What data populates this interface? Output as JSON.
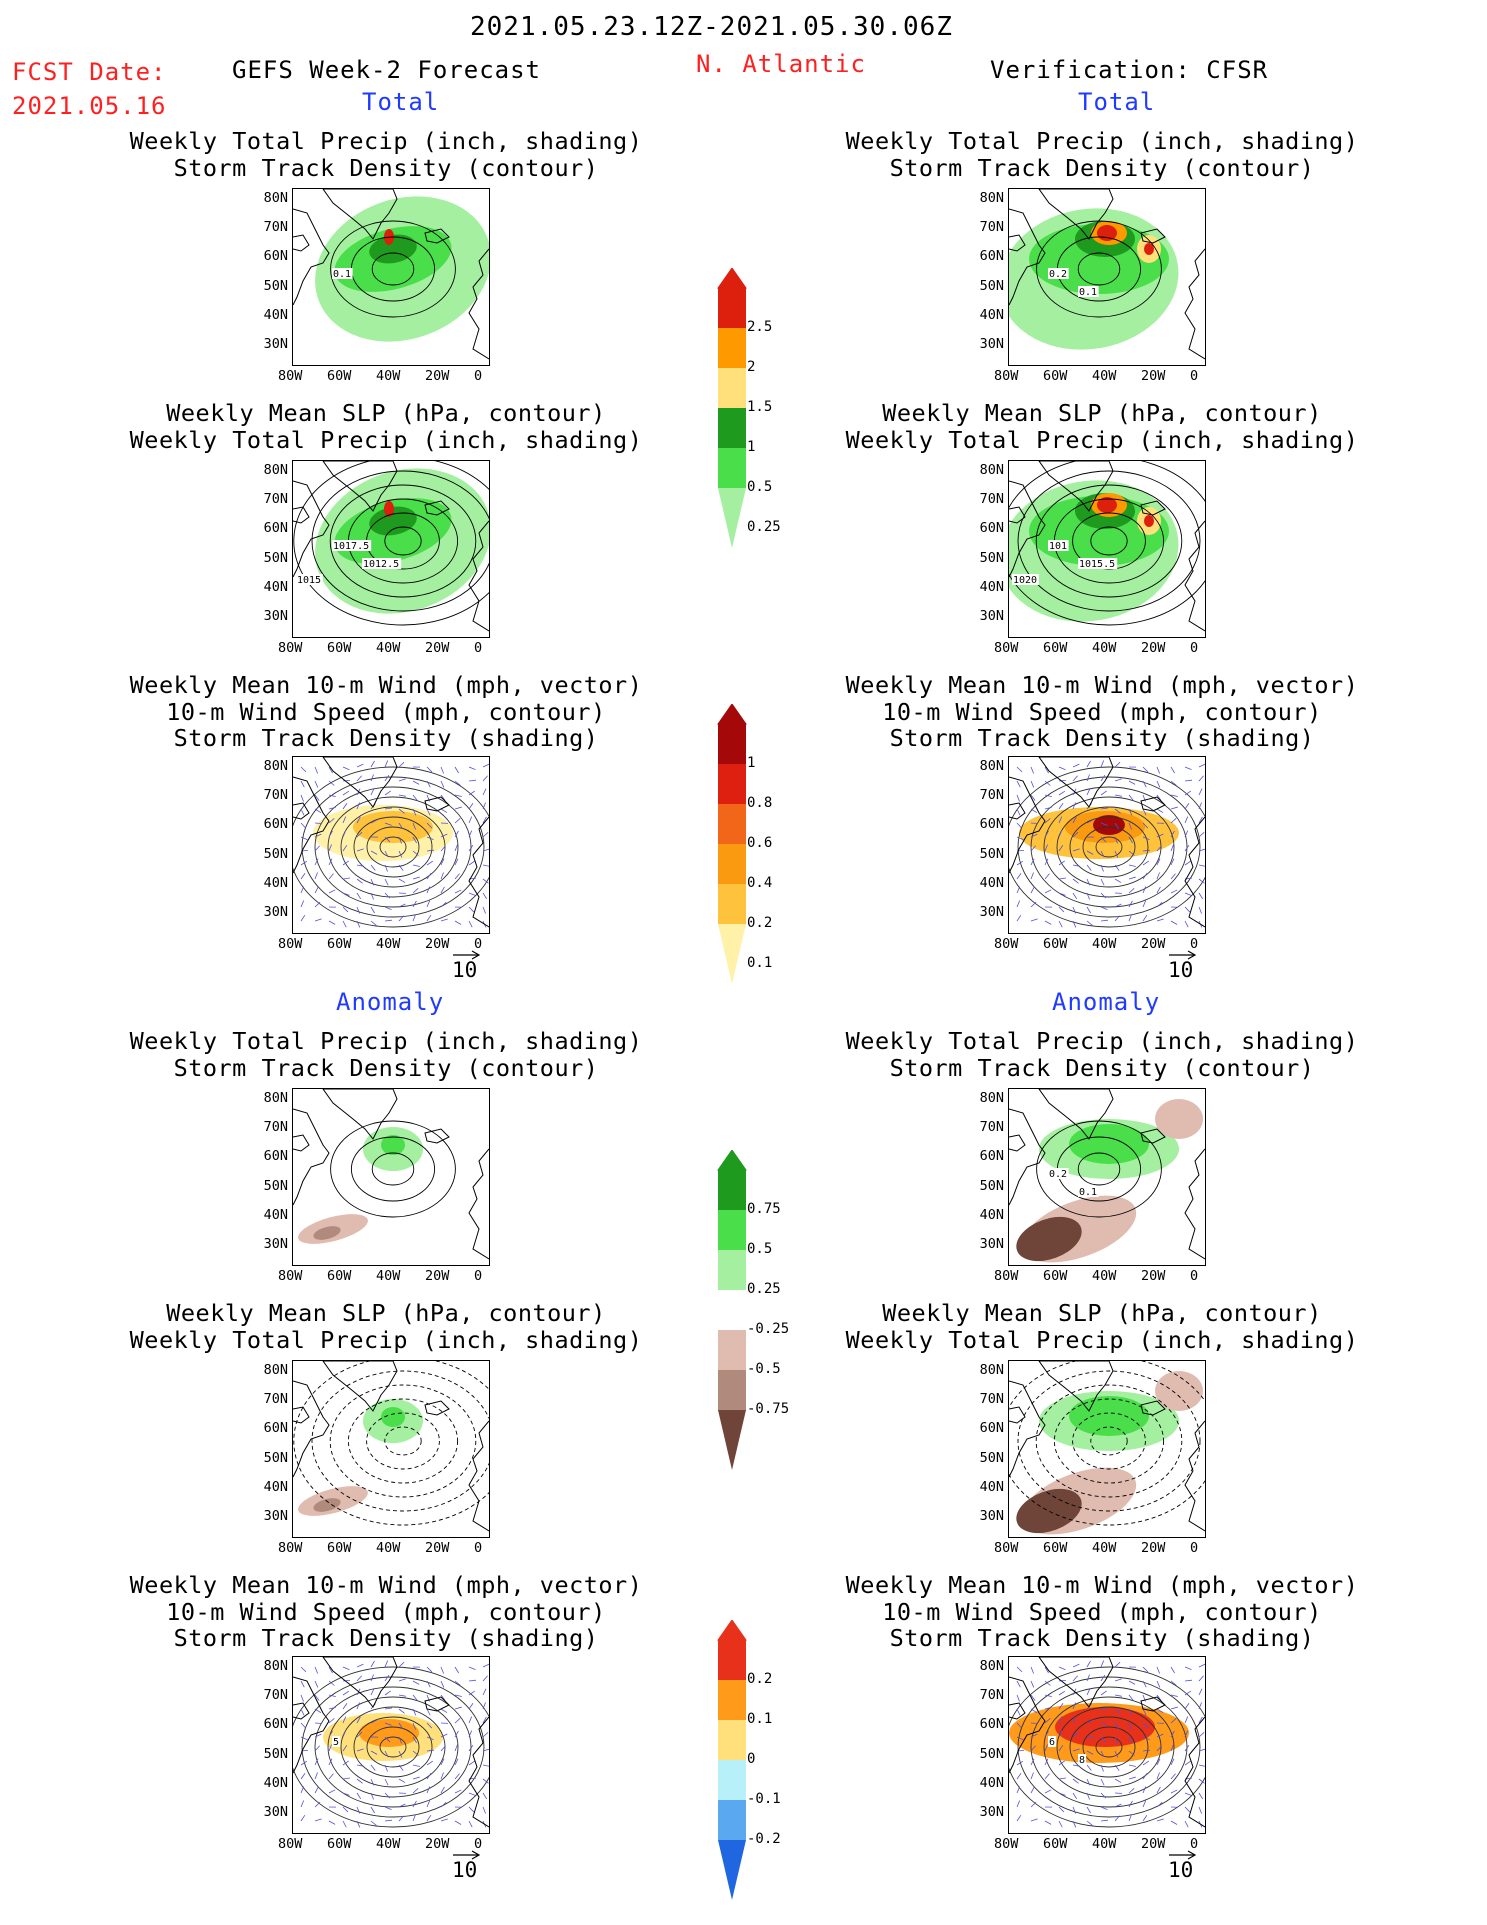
{
  "header": {
    "period": "2021.05.23.12Z-2021.05.30.06Z",
    "fcst_label": "FCST Date:",
    "fcst_date": "2021.05.16",
    "left_title": "GEFS Week-2 Forecast",
    "region": "N. Atlantic",
    "right_title": "Verification: CFSR"
  },
  "sections": {
    "total": "Total",
    "anomaly": "Anomaly"
  },
  "panel_titles": {
    "precip_track": "Weekly Total Precip (inch, shading)\nStorm Track Density (contour)",
    "slp_precip": "Weekly Mean SLP (hPa, contour)\nWeekly Total Precip (inch, shading)",
    "wind_track": "Weekly Mean 10-m Wind (mph, vector)\n10-m Wind Speed (mph, contour)\nStorm Track Density (shading)"
  },
  "axes": {
    "lat": [
      "80N",
      "70N",
      "60N",
      "50N",
      "40N",
      "30N"
    ],
    "lon": [
      "80W",
      "60W",
      "40W",
      "20W",
      "0"
    ]
  },
  "vector_ref": "10",
  "colorbars": {
    "precip_total": {
      "labels": [
        "2.5",
        "2",
        "1.5",
        "1",
        "0.5",
        "0.25"
      ],
      "colors": [
        "#dd1f0d",
        "#ff9900",
        "#ffe07a",
        "#1e9a1e",
        "#4ade4a",
        "#a4f0a0"
      ]
    },
    "track_total": {
      "labels": [
        "1",
        "0.8",
        "0.6",
        "0.4",
        "0.2",
        "0.1"
      ],
      "colors": [
        "#a50808",
        "#dd2010",
        "#f2661a",
        "#fa9a10",
        "#ffc23c",
        "#fff1a8"
      ]
    },
    "precip_anom": {
      "labels": [
        "0.75",
        "0.5",
        "0.25",
        "-0.25",
        "-0.5",
        "-0.75"
      ],
      "colors": [
        "#1e9a1e",
        "#4ade4a",
        "#a4f0a0",
        "#ffffff",
        "#e0bcb0",
        "#b08a7c",
        "#6e4538"
      ]
    },
    "track_anom": {
      "labels": [
        "0.2",
        "0.1",
        "0",
        "-0.1",
        "-0.2"
      ],
      "colors": [
        "#e8311a",
        "#ff9a1a",
        "#ffe07a",
        "#b8f0fa",
        "#5aa8f0",
        "#1f66e0"
      ]
    }
  },
  "contour_labels": {
    "gefs_precip_track": [
      "0.1"
    ],
    "gefs_slp_precip": [
      "1017.5",
      "1012.5",
      "1015"
    ],
    "cfsr_precip_track": [
      "0.2",
      "0.1"
    ],
    "cfsr_slp_precip": [
      "101",
      "1015.5",
      "1020"
    ],
    "cfsr_precip_anom": [
      "0.2",
      "0.1"
    ],
    "gefs_wind_anom": [
      "5"
    ],
    "cfsr_wind_anom": [
      "6",
      "8"
    ]
  }
}
